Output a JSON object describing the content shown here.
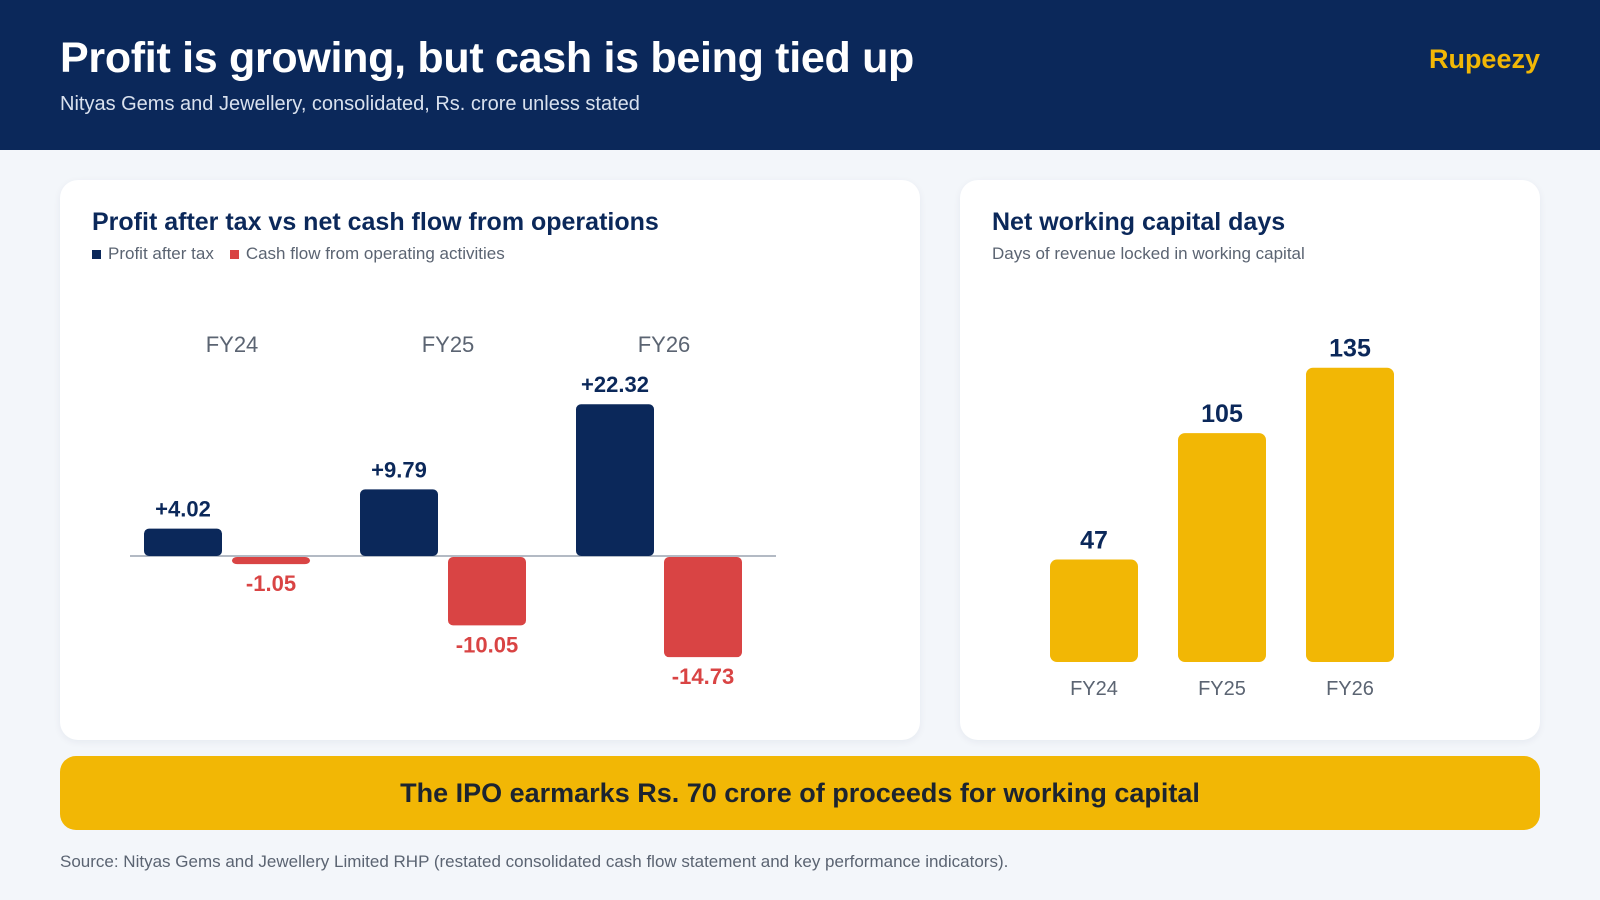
{
  "header": {
    "title": "Profit is growing, but cash is being tied up",
    "subtitle": "Nityas Gems and Jewellery, consolidated, Rs. crore unless stated",
    "brand": "Rupeezy"
  },
  "colors": {
    "navy": "#0b285a",
    "red": "#d94444",
    "gold": "#f2b705"
  },
  "chart_data": [
    {
      "type": "bar",
      "title": "Profit after tax vs net cash flow from operations",
      "categories": [
        "FY24",
        "FY25",
        "FY26"
      ],
      "series": [
        {
          "name": "Profit after tax",
          "color": "#0b285a",
          "values": [
            4.02,
            9.79,
            22.32
          ],
          "labels": [
            "+4.02",
            "+9.79",
            "+22.32"
          ]
        },
        {
          "name": "Cash flow from operating activities",
          "color": "#d94444",
          "values": [
            -1.05,
            -10.05,
            -14.73
          ],
          "labels": [
            "-1.05",
            "-10.05",
            "-14.73"
          ]
        }
      ],
      "zero_line": true,
      "grid": false,
      "legend": "top-left"
    },
    {
      "type": "bar",
      "title": "Net working capital days",
      "subtitle": "Days of revenue locked in working capital",
      "categories": [
        "FY24",
        "FY25",
        "FY26"
      ],
      "values": [
        47,
        105,
        135
      ],
      "labels": [
        "47",
        "105",
        "135"
      ],
      "color": "#f2b705",
      "grid": false
    }
  ],
  "banner": {
    "text": "The IPO earmarks Rs. 70 crore of proceeds for working capital"
  },
  "source": "Source: Nityas Gems and Jewellery Limited RHP (restated consolidated cash flow statement and key performance indicators)."
}
